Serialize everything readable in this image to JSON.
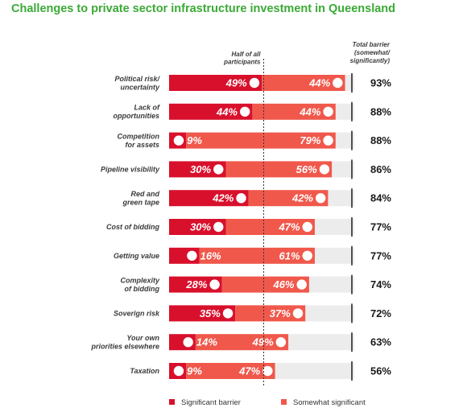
{
  "title": "Challenges to private sector infrastructure investment in Queensland",
  "colors": {
    "significant": "#d8102c",
    "somewhat": "#f0584b",
    "track": "#ececec",
    "title": "#3aaa35"
  },
  "chart_data": {
    "type": "bar",
    "orientation": "horizontal-stacked",
    "title": "Challenges to private sector infrastructure investment in Queensland",
    "midline_label": [
      "Half of all",
      "participants"
    ],
    "total_header": [
      "Total barrier",
      "(somewhat/",
      "significantly)"
    ],
    "categories": [
      [
        "Political risk/",
        "uncertainty"
      ],
      [
        "Lack of",
        "opportunities"
      ],
      [
        "Competition",
        "for assets"
      ],
      [
        "Pipeline visibility"
      ],
      [
        "Red and",
        "green tape"
      ],
      [
        "Cost of bidding"
      ],
      [
        "Getting value"
      ],
      [
        "Complexity",
        "of bidding"
      ],
      [
        "Soverign risk"
      ],
      [
        "Your own",
        "priorities elsewhere"
      ],
      [
        "Taxation"
      ]
    ],
    "series": [
      {
        "name": "Significant barrier",
        "values": [
          49,
          44,
          9,
          30,
          42,
          30,
          16,
          28,
          35,
          14,
          9
        ]
      },
      {
        "name": "Somewhat significant",
        "values": [
          44,
          44,
          79,
          56,
          42,
          47,
          61,
          46,
          37,
          49,
          47
        ]
      }
    ],
    "totals": [
      93,
      88,
      88,
      86,
      84,
      77,
      77,
      74,
      72,
      63,
      56
    ],
    "value_suffix": "%",
    "xlim": [
      0,
      100
    ],
    "legend_position": "bottom"
  }
}
